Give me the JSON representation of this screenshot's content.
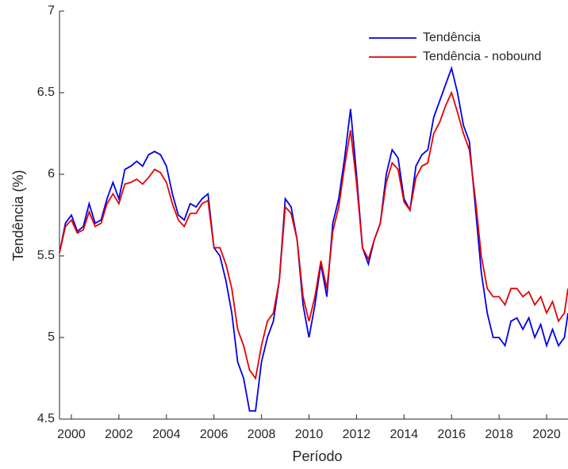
{
  "chart_data": {
    "type": "line",
    "xlabel": "Período",
    "ylabel": "Tendência (%)",
    "x": [
      1999.5,
      1999.75,
      2000,
      2000.25,
      2000.5,
      2000.75,
      2001,
      2001.25,
      2001.5,
      2001.75,
      2002,
      2002.25,
      2002.5,
      2002.75,
      2003,
      2003.25,
      2003.5,
      2003.75,
      2004,
      2004.25,
      2004.5,
      2004.75,
      2005,
      2005.25,
      2005.5,
      2005.75,
      2006,
      2006.25,
      2006.5,
      2006.75,
      2007,
      2007.25,
      2007.5,
      2007.75,
      2008,
      2008.25,
      2008.5,
      2008.75,
      2009,
      2009.25,
      2009.5,
      2009.75,
      2010,
      2010.25,
      2010.5,
      2010.75,
      2011,
      2011.25,
      2011.5,
      2011.75,
      2012,
      2012.25,
      2012.5,
      2012.75,
      2013,
      2013.25,
      2013.5,
      2013.75,
      2014,
      2014.25,
      2014.5,
      2014.75,
      2015,
      2015.25,
      2015.5,
      2015.75,
      2016,
      2016.25,
      2016.5,
      2016.75,
      2017,
      2017.25,
      2017.5,
      2017.75,
      2018,
      2018.25,
      2018.5,
      2018.75,
      2019,
      2019.25,
      2019.5,
      2019.75,
      2020,
      2020.25,
      2020.5,
      2020.75,
      2020.9
    ],
    "series": [
      {
        "name": "Tendência",
        "color": "#0000e6",
        "values": [
          5.52,
          5.7,
          5.75,
          5.65,
          5.68,
          5.82,
          5.7,
          5.72,
          5.85,
          5.95,
          5.85,
          6.03,
          6.05,
          6.08,
          6.05,
          6.12,
          6.14,
          6.12,
          6.05,
          5.88,
          5.75,
          5.72,
          5.82,
          5.8,
          5.85,
          5.88,
          5.55,
          5.5,
          5.35,
          5.15,
          4.85,
          4.75,
          4.55,
          4.55,
          4.85,
          5.0,
          5.1,
          5.35,
          5.85,
          5.8,
          5.6,
          5.2,
          5.0,
          5.2,
          5.45,
          5.25,
          5.7,
          5.85,
          6.1,
          6.4,
          6.0,
          5.55,
          5.45,
          5.6,
          5.7,
          6.0,
          6.15,
          6.1,
          5.85,
          5.78,
          6.05,
          6.12,
          6.15,
          6.35,
          6.45,
          6.55,
          6.65,
          6.5,
          6.3,
          6.2,
          5.8,
          5.4,
          5.15,
          5.0,
          5.0,
          4.95,
          5.1,
          5.12,
          5.05,
          5.12,
          5.0,
          5.08,
          4.95,
          5.05,
          4.95,
          5.0,
          5.15
        ]
      },
      {
        "name": "Tendência - nobound",
        "color": "#e60000",
        "values": [
          5.52,
          5.68,
          5.72,
          5.64,
          5.66,
          5.77,
          5.68,
          5.7,
          5.82,
          5.88,
          5.82,
          5.94,
          5.95,
          5.97,
          5.94,
          5.98,
          6.03,
          6.01,
          5.95,
          5.82,
          5.72,
          5.68,
          5.76,
          5.76,
          5.82,
          5.84,
          5.55,
          5.55,
          5.45,
          5.3,
          5.05,
          4.95,
          4.8,
          4.75,
          4.95,
          5.1,
          5.15,
          5.35,
          5.8,
          5.76,
          5.6,
          5.25,
          5.1,
          5.25,
          5.47,
          5.3,
          5.65,
          5.8,
          6.05,
          6.27,
          5.95,
          5.55,
          5.48,
          5.6,
          5.7,
          5.95,
          6.07,
          6.03,
          5.83,
          5.78,
          5.98,
          6.05,
          6.07,
          6.25,
          6.32,
          6.42,
          6.5,
          6.38,
          6.25,
          6.15,
          5.85,
          5.5,
          5.3,
          5.25,
          5.25,
          5.2,
          5.3,
          5.3,
          5.25,
          5.28,
          5.2,
          5.25,
          5.15,
          5.22,
          5.1,
          5.15,
          5.3
        ]
      }
    ],
    "xlim": [
      1999.5,
      2020.9
    ],
    "xticks": [
      2000,
      2002,
      2004,
      2006,
      2008,
      2010,
      2012,
      2014,
      2016,
      2018,
      2020
    ],
    "ylim": [
      4.5,
      7
    ],
    "yticks": [
      4.5,
      5,
      5.5,
      6,
      6.5,
      7
    ],
    "legend": "northeast"
  }
}
